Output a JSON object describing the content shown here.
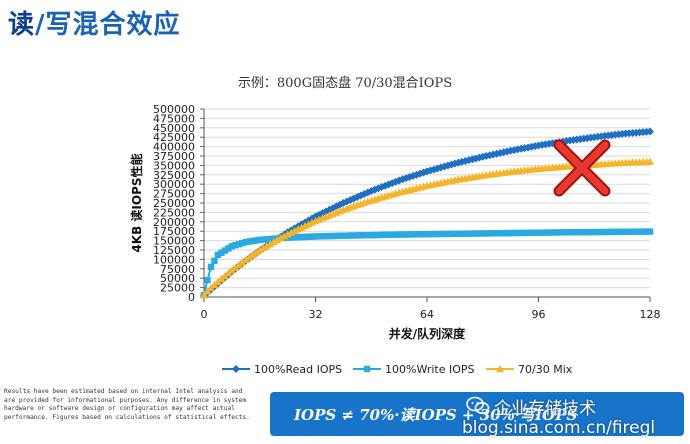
{
  "slide": {
    "title_part1": "读",
    "title_part2": "/写混合效应"
  },
  "chart_data": {
    "type": "line",
    "title": "示例：800G固态盘 70/30混合IOPS",
    "xlabel": "并发/队列深度",
    "ylabel": "4KB 读IOPS性能",
    "xlim": [
      0,
      128
    ],
    "ylim": [
      0,
      500000
    ],
    "x_ticks": [
      0,
      32,
      64,
      96,
      128
    ],
    "y_ticks": [
      0,
      25000,
      50000,
      75000,
      100000,
      125000,
      150000,
      175000,
      200000,
      225000,
      250000,
      275000,
      300000,
      325000,
      350000,
      375000,
      400000,
      425000,
      450000,
      475000,
      500000
    ],
    "grid": "horizontal",
    "legend_position": "bottom",
    "x": [
      0,
      1,
      2,
      4,
      8,
      12,
      16,
      24,
      32,
      40,
      48,
      56,
      64,
      72,
      80,
      88,
      96,
      104,
      112,
      120,
      128
    ],
    "series": [
      {
        "name": "100%Read IOPS",
        "color": "#1f6fc2",
        "marker": "diamond",
        "values": [
          5000,
          12000,
          20000,
          36000,
          68000,
          97000,
          124000,
          172000,
          214000,
          250000,
          282000,
          310000,
          334000,
          355000,
          373000,
          389000,
          403000,
          415000,
          425000,
          434000,
          440000
        ]
      },
      {
        "name": "100%Write IOPS",
        "color": "#29aae1",
        "marker": "square",
        "values": [
          5000,
          45000,
          80000,
          112000,
          135000,
          146000,
          152000,
          158000,
          161000,
          163000,
          164500,
          166000,
          167000,
          168000,
          169000,
          170000,
          171000,
          172000,
          172500,
          173500,
          174000
        ]
      },
      {
        "name": "70/30 Mix",
        "color": "#f4b52a",
        "marker": "triangle",
        "values": [
          5000,
          15000,
          24000,
          40000,
          71000,
          99000,
          125000,
          167000,
          202000,
          232000,
          257000,
          278000,
          296000,
          311000,
          323000,
          333000,
          341000,
          347000,
          352000,
          357000,
          360000
        ]
      }
    ],
    "annotation": "red-x-mark"
  },
  "disclaimer": "Results have been estimated based on internal Intel analysis and are provided for informational purposes. Any difference in system hardware or software design or configuration may affect actual performance.  Figures based on calculations of statistical effects.",
  "formula": "IOPS ≠ 70%·读IOPS + 30%·写IOPS",
  "watermark": {
    "name": "企业存储技术",
    "url": "blog.sina.com.cn/firegl"
  }
}
